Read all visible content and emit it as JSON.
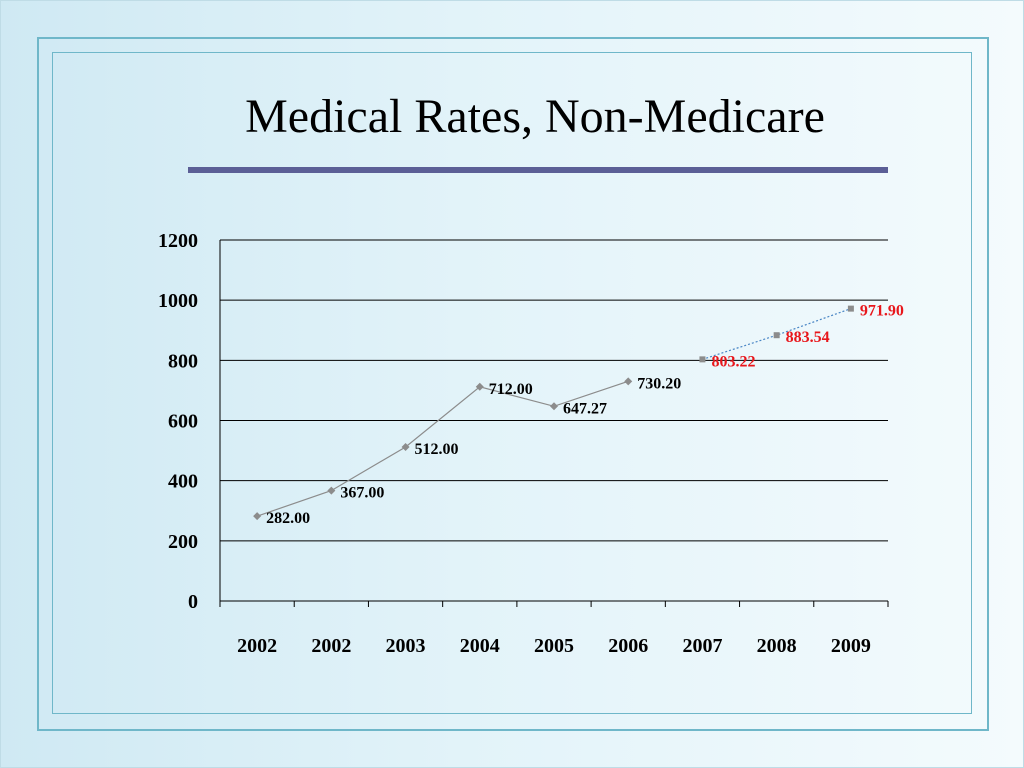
{
  "slide": {
    "title": "Medical Rates, Non-Medicare",
    "colors": {
      "accent_rule": "#5b5f96",
      "frame": "#6fb7c9"
    }
  },
  "chart_data": {
    "type": "line",
    "categories": [
      "2002",
      "2002",
      "2003",
      "2004",
      "2005",
      "2006",
      "2007",
      "2008",
      "2009"
    ],
    "ylim": [
      0,
      1200
    ],
    "yticks": [
      "0",
      "200",
      "400",
      "600",
      "800",
      "1000",
      "1200"
    ],
    "grid": true,
    "legend": "none",
    "series": [
      {
        "style": "solid",
        "color": "#8c8c8c",
        "label_color": "#000000",
        "values": [
          282.0,
          367.0,
          512.0,
          712.0,
          647.27,
          730.2,
          null,
          null,
          null
        ],
        "labels": [
          "282.00",
          "367.00",
          "512.00",
          "712.00",
          "647.27",
          "730.20",
          "",
          "",
          ""
        ]
      },
      {
        "style": "dotted",
        "color": "#4a86c5",
        "label_color": "#e8161b",
        "values": [
          null,
          null,
          null,
          null,
          null,
          null,
          803.22,
          883.54,
          971.9
        ],
        "labels": [
          "",
          "",
          "",
          "",
          "",
          "",
          "803.22",
          "883.54",
          "971.90"
        ]
      }
    ]
  }
}
